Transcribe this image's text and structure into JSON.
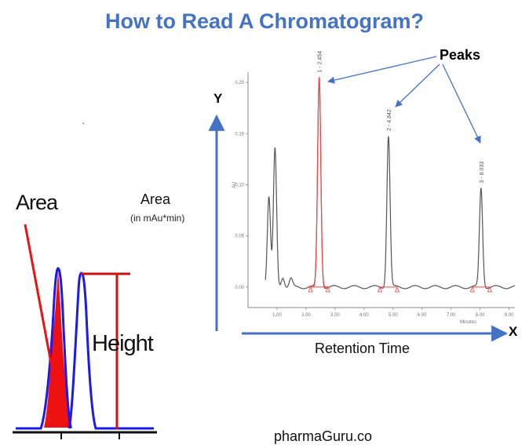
{
  "title": "How to Read A Chromatogram?",
  "colors": {
    "title": "#4472c4",
    "axis": "#4472c4",
    "callout": "#4472c4",
    "highlight": "#ff3333",
    "trace": "#555555",
    "inset_peak": "#1a1aee",
    "inset_red": "#dd1111"
  },
  "labels": {
    "y_axis": "Y",
    "x_axis": "X",
    "peaks": "Peaks",
    "area": "Area",
    "area_unit": "(in mAu*min)",
    "retention_time": "Retention Time",
    "inset_area": "Area",
    "inset_height": "Height",
    "footer": "pharmaGuru.co"
  },
  "chart_data": {
    "type": "line",
    "x_unit": "Minutes",
    "y_unit": "AU",
    "xlim": [
      0,
      9.2
    ],
    "ylim": [
      -0.02,
      0.21
    ],
    "x_ticks": [
      "1.00",
      "2.00",
      "3.00",
      "4.00",
      "5.00",
      "6.00",
      "7.00",
      "8.00",
      "9.00"
    ],
    "y_ticks": [
      "0.00",
      "0.05",
      "0.10",
      "0.15",
      "0.20"
    ],
    "peaks": [
      {
        "label": "1 - 2.454",
        "rt": 2.454,
        "height": 0.205,
        "highlighted": true
      },
      {
        "label": "2 - 4.842",
        "rt": 4.842,
        "height": 0.148,
        "highlighted": false
      },
      {
        "label": "3 - 8.033",
        "rt": 8.033,
        "height": 0.097,
        "highlighted": false
      }
    ],
    "early_peaks": [
      {
        "rt": 0.72,
        "height": 0.088
      },
      {
        "rt": 0.93,
        "height": 0.135
      },
      {
        "rt": 1.2,
        "height": 0.01
      },
      {
        "rt": 1.48,
        "height": 0.008
      }
    ]
  }
}
